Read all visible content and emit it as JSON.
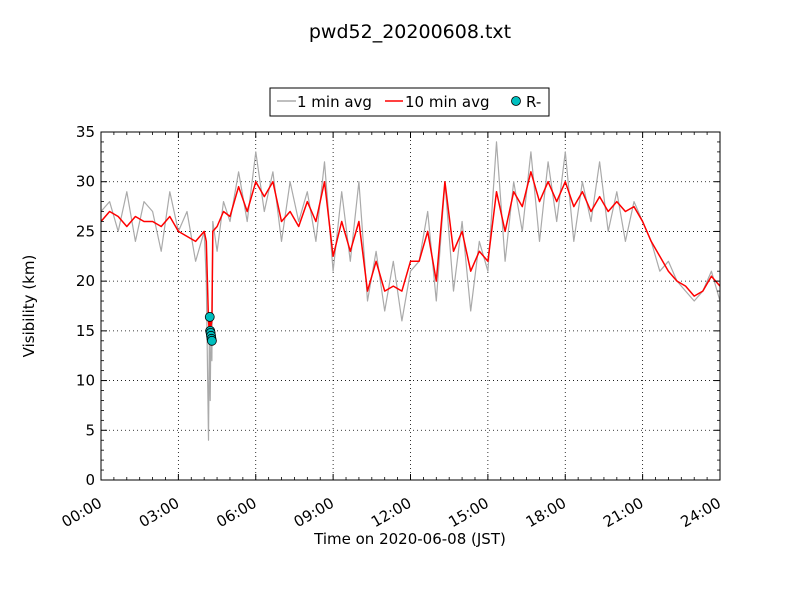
{
  "chart_data": {
    "type": "line",
    "title": "pwd52_20200608.txt",
    "xlabel": "Time on 2020-06-08 (JST)",
    "ylabel": "Visibility (km)",
    "xlim": [
      "00:00",
      "24:00"
    ],
    "ylim": [
      0,
      35
    ],
    "x_ticks": [
      "00:00",
      "03:00",
      "06:00",
      "09:00",
      "12:00",
      "15:00",
      "18:00",
      "21:00",
      "24:00"
    ],
    "y_ticks": [
      "0",
      "5",
      "10",
      "15",
      "20",
      "25",
      "30",
      "35"
    ],
    "grid": true,
    "legend_position": "top-center",
    "series": [
      {
        "name": "1 min avg",
        "style": "line",
        "color": "#aaaaaa",
        "x": [
          "00:00",
          "00:20",
          "00:40",
          "01:00",
          "01:20",
          "01:40",
          "02:00",
          "02:20",
          "02:40",
          "03:00",
          "03:20",
          "03:40",
          "04:00",
          "04:05",
          "04:10",
          "04:12",
          "04:14",
          "04:16",
          "04:18",
          "04:20",
          "04:30",
          "04:45",
          "05:00",
          "05:20",
          "05:40",
          "06:00",
          "06:20",
          "06:40",
          "07:00",
          "07:20",
          "07:40",
          "08:00",
          "08:20",
          "08:40",
          "09:00",
          "09:20",
          "09:40",
          "10:00",
          "10:20",
          "10:40",
          "11:00",
          "11:20",
          "11:40",
          "12:00",
          "12:20",
          "12:40",
          "13:00",
          "13:20",
          "13:40",
          "14:00",
          "14:20",
          "14:40",
          "15:00",
          "15:20",
          "15:40",
          "16:00",
          "16:20",
          "16:40",
          "17:00",
          "17:20",
          "17:40",
          "18:00",
          "18:20",
          "18:40",
          "19:00",
          "19:20",
          "19:40",
          "20:00",
          "20:20",
          "20:40",
          "21:00",
          "21:20",
          "21:40",
          "22:00",
          "22:20",
          "22:40",
          "23:00",
          "23:20",
          "23:40",
          "24:00"
        ],
        "y": [
          27,
          28,
          25,
          29,
          24,
          28,
          27,
          23,
          29,
          25,
          27,
          22,
          25,
          20,
          4,
          14,
          8,
          16,
          12,
          26,
          23,
          28,
          26,
          31,
          26,
          33,
          27,
          31,
          24,
          30,
          26,
          29,
          24,
          32,
          21,
          29,
          22,
          30,
          18,
          23,
          17,
          22,
          16,
          21,
          22,
          27,
          18,
          30,
          19,
          26,
          17,
          24,
          21,
          34,
          22,
          30,
          25,
          33,
          24,
          32,
          26,
          33,
          24,
          30,
          26,
          32,
          25,
          29,
          24,
          28,
          26,
          24,
          21,
          22,
          20,
          19,
          18,
          19,
          21,
          18
        ]
      },
      {
        "name": "10 min avg",
        "style": "line",
        "color": "#ff0000",
        "x": [
          "00:00",
          "00:20",
          "00:40",
          "01:00",
          "01:20",
          "01:40",
          "02:00",
          "02:20",
          "02:40",
          "03:00",
          "03:20",
          "03:40",
          "04:00",
          "04:05",
          "04:10",
          "04:12",
          "04:14",
          "04:16",
          "04:18",
          "04:20",
          "04:30",
          "04:45",
          "05:00",
          "05:20",
          "05:40",
          "06:00",
          "06:20",
          "06:40",
          "07:00",
          "07:20",
          "07:40",
          "08:00",
          "08:20",
          "08:40",
          "09:00",
          "09:20",
          "09:40",
          "10:00",
          "10:20",
          "10:40",
          "11:00",
          "11:20",
          "11:40",
          "12:00",
          "12:20",
          "12:40",
          "13:00",
          "13:20",
          "13:40",
          "14:00",
          "14:20",
          "14:40",
          "15:00",
          "15:20",
          "15:40",
          "16:00",
          "16:20",
          "16:40",
          "17:00",
          "17:20",
          "17:40",
          "18:00",
          "18:20",
          "18:40",
          "19:00",
          "19:20",
          "19:40",
          "20:00",
          "20:20",
          "20:40",
          "21:00",
          "21:20",
          "21:40",
          "22:00",
          "22:20",
          "22:40",
          "23:00",
          "23:20",
          "23:40",
          "24:00"
        ],
        "y": [
          26,
          27,
          26.5,
          25.5,
          26.5,
          26,
          26,
          25.5,
          26.5,
          25,
          24.5,
          24,
          25,
          24,
          16,
          15,
          16,
          15.5,
          16,
          25,
          25.5,
          27,
          26.5,
          29.5,
          27,
          30,
          28.5,
          30,
          26,
          27,
          25.5,
          28,
          26,
          30,
          22.5,
          26,
          23,
          26,
          19,
          22,
          19,
          19.5,
          19,
          22,
          22,
          25,
          20,
          30,
          23,
          25,
          21,
          23,
          22,
          29,
          25,
          29,
          27.5,
          31,
          28,
          30,
          28,
          30,
          27.5,
          29,
          27,
          28.5,
          27,
          28,
          27,
          27.5,
          26,
          24,
          22.5,
          21,
          20,
          19.5,
          18.5,
          19,
          20.5,
          19.5
        ]
      },
      {
        "name": "R-",
        "style": "marker",
        "color": "#00bfbf",
        "x": [
          "04:13",
          "04:14",
          "04:15",
          "04:16",
          "04:17",
          "04:18"
        ],
        "y": [
          16.4,
          15.0,
          14.8,
          14.5,
          14.2,
          14.0
        ]
      }
    ]
  }
}
